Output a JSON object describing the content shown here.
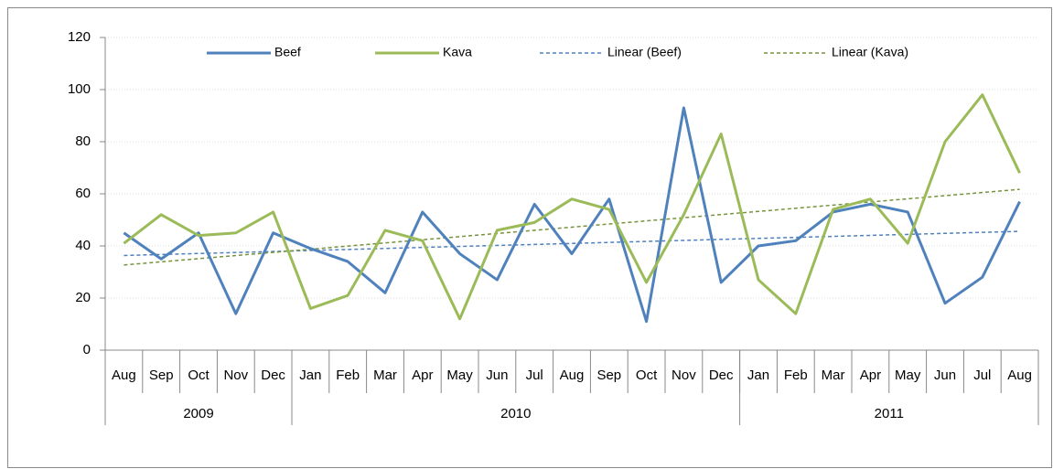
{
  "chart_data": {
    "type": "line",
    "categories": [
      "Aug",
      "Sep",
      "Oct",
      "Nov",
      "Dec",
      "Jan",
      "Feb",
      "Mar",
      "Apr",
      "May",
      "Jun",
      "Jul",
      "Aug",
      "Sep",
      "Oct",
      "Nov",
      "Dec",
      "Jan",
      "Feb",
      "Mar",
      "Apr",
      "May",
      "Jun",
      "Jul",
      "Aug"
    ],
    "year_groups": [
      {
        "label": "2009",
        "count": 5
      },
      {
        "label": "2010",
        "count": 12
      },
      {
        "label": "2011",
        "count": 8
      }
    ],
    "series": [
      {
        "name": "Beef",
        "color": "#4f81bd",
        "values": [
          45,
          35,
          45,
          14,
          45,
          39,
          34,
          22,
          53,
          37,
          27,
          56,
          37,
          58,
          11,
          93,
          26,
          40,
          42,
          53,
          56,
          53,
          18,
          28,
          57
        ]
      },
      {
        "name": "Kava",
        "color": "#9bbb59",
        "values": [
          41,
          52,
          44,
          45,
          53,
          16,
          21,
          46,
          42,
          12,
          46,
          49,
          58,
          54,
          26,
          52,
          83,
          27,
          14,
          54,
          58,
          41,
          80,
          98,
          68
        ]
      }
    ],
    "trendlines": [
      {
        "name": "Linear (Beef)",
        "color": "#4f81bd"
      },
      {
        "name": "Linear (Kava)",
        "color": "#77933c"
      }
    ],
    "ylim": [
      0,
      120
    ],
    "yticks": [
      0,
      20,
      40,
      60,
      80,
      100,
      120
    ],
    "grid": true,
    "legend": "top"
  }
}
